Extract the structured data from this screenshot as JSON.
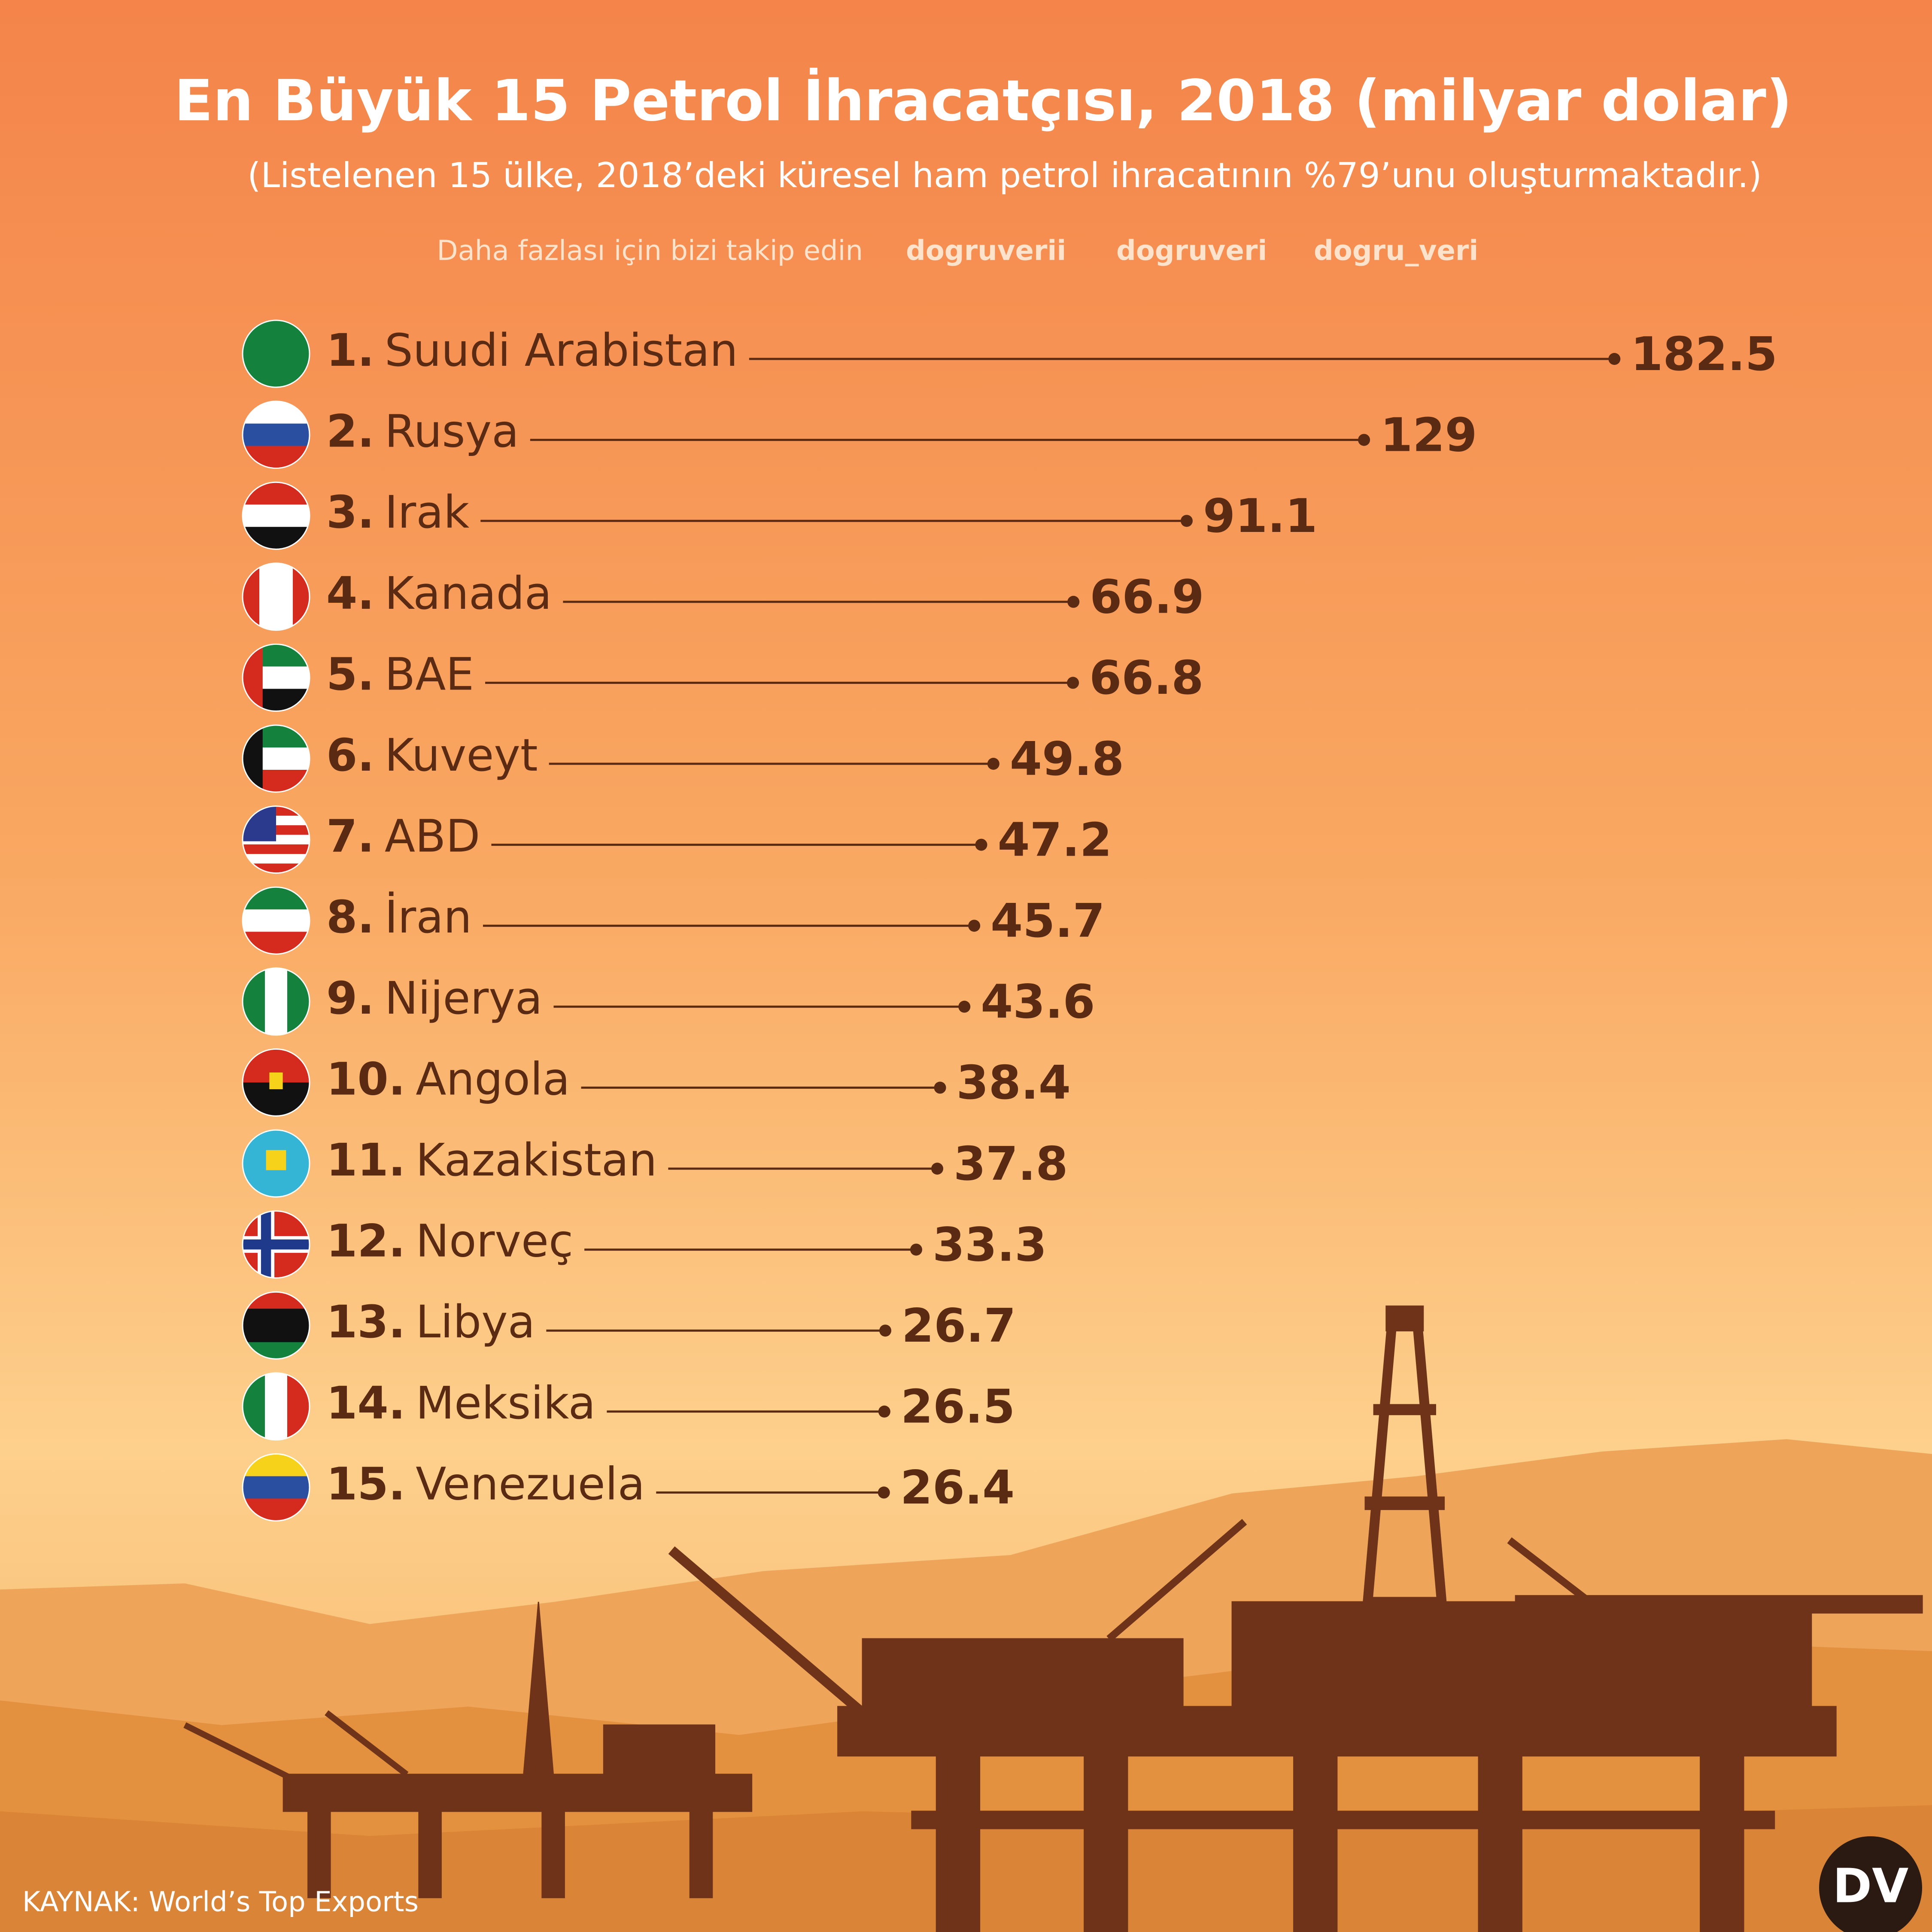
{
  "chart_data": {
    "type": "lollipop",
    "title": "En Büyük 15 Petrol İhracatçısı, 2018 (milyar dolar)",
    "subtitle": "(Listelenen 15 ülke, 2018’deki küresel ham petrol ihracatının %79’unu oluşturmaktadır.)",
    "follow_text": "Daha fazlası için bizi takip edin",
    "social": [
      "dogruverii",
      "dogruveri",
      "dogru_veri"
    ],
    "ranks": [
      "1.",
      "2.",
      "3.",
      "4.",
      "5.",
      "6.",
      "7.",
      "8.",
      "9.",
      "10.",
      "11.",
      "12.",
      "13.",
      "14.",
      "15."
    ],
    "categories": [
      "Suudi Arabistan",
      "Rusya",
      "Irak",
      "Kanada",
      "BAE",
      "Kuveyt",
      "ABD",
      "İran",
      "Nijerya",
      "Angola",
      "Kazakistan",
      "Norveç",
      "Libya",
      "Meksika",
      "Venezuela"
    ],
    "values": [
      182.5,
      129,
      91.1,
      66.9,
      66.8,
      49.8,
      47.2,
      45.7,
      43.6,
      38.4,
      37.8,
      33.3,
      26.7,
      26.5,
      26.4
    ],
    "color": "#5b2a12",
    "source": "KAYNAK: World’s Top Exports",
    "logo": "DV"
  }
}
